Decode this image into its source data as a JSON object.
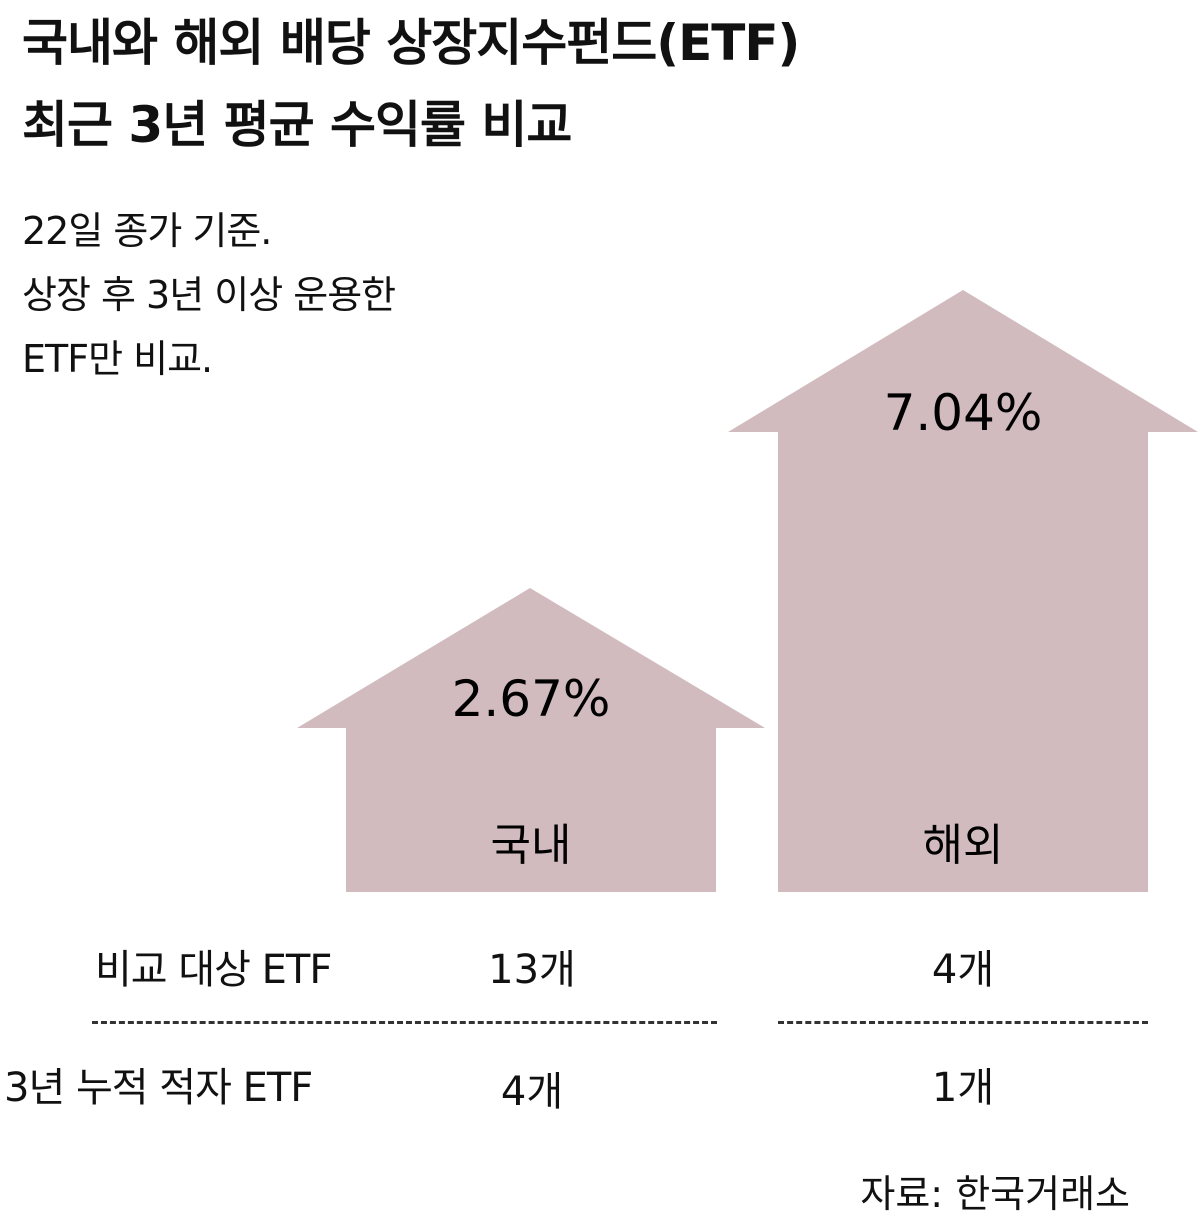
{
  "title": {
    "line1": "국내와 해외 배당 상장지수펀드(ETF)",
    "line2": "최근 3년 평균 수익률 비교"
  },
  "subtitle": {
    "line1": "22일 종가 기준.",
    "line2": "상장 후 3년 이상 운용한",
    "line3": "ETF만 비교."
  },
  "chart_data": {
    "type": "bar",
    "title": "국내와 해외 배당 상장지수펀드(ETF) 최근 3년 평균 수익률 비교",
    "categories": [
      "국내",
      "해외"
    ],
    "values": [
      2.67,
      7.04
    ],
    "value_labels": [
      "2.67%",
      "7.04%"
    ],
    "unit": "%",
    "color": "#d1bbbf"
  },
  "table": {
    "rows": [
      {
        "label": "비교 대상 ETF",
        "domestic": "13개",
        "overseas": "4개"
      },
      {
        "label": "3년 누적 적자 ETF",
        "domestic": "4개",
        "overseas": "1개"
      }
    ]
  },
  "source": "자료: 한국거래소"
}
